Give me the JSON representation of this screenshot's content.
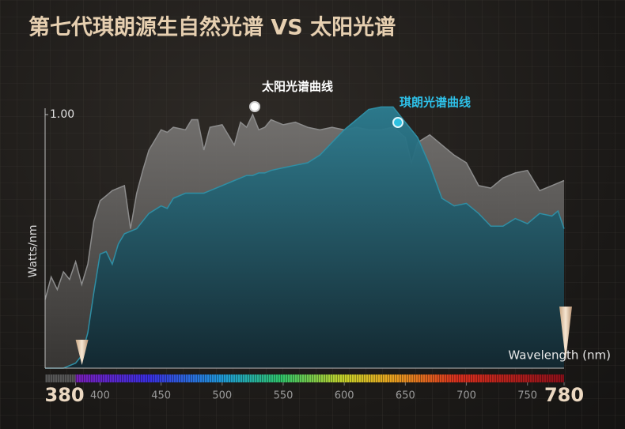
{
  "chart_data": {
    "type": "area",
    "title": "第七代琪朗源生自然光谱 VS 太阳光谱",
    "y_label": "Watts/nm",
    "x_label": "Wavelength (nm)",
    "xlim": [
      355,
      780
    ],
    "ylim": [
      0,
      1.05
    ],
    "xticks": [
      380,
      400,
      450,
      500,
      550,
      600,
      650,
      700,
      750,
      780
    ],
    "yticks": [
      {
        "value": 1,
        "label": "1.00"
      }
    ],
    "annotations": [
      {
        "text": "太阳光谱曲线"
      },
      {
        "text": "琪朗光谱曲线"
      }
    ],
    "x": [
      355,
      360,
      365,
      370,
      375,
      380,
      385,
      390,
      395,
      400,
      405,
      410,
      415,
      420,
      425,
      430,
      435,
      440,
      450,
      455,
      460,
      470,
      475,
      480,
      485,
      490,
      500,
      510,
      515,
      520,
      525,
      530,
      535,
      540,
      550,
      560,
      570,
      580,
      590,
      600,
      610,
      620,
      630,
      640,
      650,
      655,
      660,
      670,
      680,
      690,
      700,
      710,
      720,
      730,
      740,
      750,
      760,
      770,
      775,
      780
    ],
    "series": [
      {
        "color": "#8c8c8c",
        "values": [
          0.27,
          0.36,
          0.31,
          0.38,
          0.35,
          0.42,
          0.33,
          0.41,
          0.58,
          0.66,
          0.68,
          0.7,
          0.71,
          0.72,
          0.55,
          0.69,
          0.78,
          0.86,
          0.94,
          0.93,
          0.95,
          0.94,
          0.98,
          0.98,
          0.86,
          0.95,
          0.96,
          0.88,
          0.97,
          0.95,
          1.0,
          0.94,
          0.95,
          0.98,
          0.96,
          0.97,
          0.95,
          0.94,
          0.95,
          0.94,
          0.95,
          0.94,
          0.94,
          0.95,
          0.91,
          0.81,
          0.89,
          0.92,
          0.88,
          0.84,
          0.81,
          0.72,
          0.71,
          0.75,
          0.77,
          0.78,
          0.7,
          0.72,
          0.73,
          0.74
        ]
      },
      {
        "color": "#2f8ea4",
        "values": [
          0.0,
          0.0,
          0.0,
          0.0,
          0.01,
          0.02,
          0.05,
          0.14,
          0.3,
          0.45,
          0.46,
          0.41,
          0.49,
          0.53,
          0.54,
          0.55,
          0.58,
          0.61,
          0.64,
          0.63,
          0.67,
          0.69,
          0.69,
          0.69,
          0.69,
          0.7,
          0.72,
          0.74,
          0.75,
          0.76,
          0.76,
          0.77,
          0.77,
          0.78,
          0.79,
          0.8,
          0.81,
          0.84,
          0.89,
          0.94,
          0.98,
          1.02,
          1.03,
          1.03,
          0.97,
          0.94,
          0.91,
          0.8,
          0.67,
          0.64,
          0.65,
          0.61,
          0.56,
          0.56,
          0.59,
          0.57,
          0.61,
          0.6,
          0.62,
          0.55
        ]
      }
    ]
  }
}
